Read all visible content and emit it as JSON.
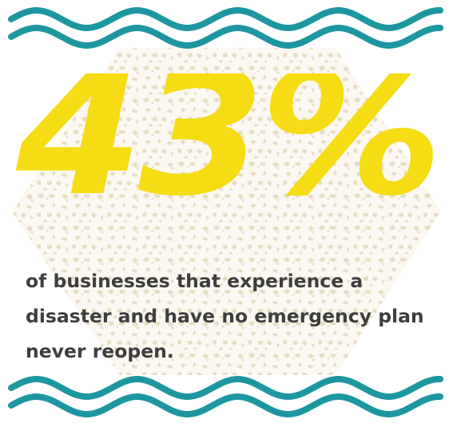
{
  "stat": {
    "value": "43%"
  },
  "caption": {
    "line1": "of businesses that experience a",
    "line2": "disaster and have no emergency plan",
    "line3": "never reopen."
  },
  "colors": {
    "accent_yellow": "#f5dc14",
    "wave_teal": "#1e96a0",
    "pattern_beige": "#efe7d2",
    "text_dark": "#3e3e3e"
  }
}
